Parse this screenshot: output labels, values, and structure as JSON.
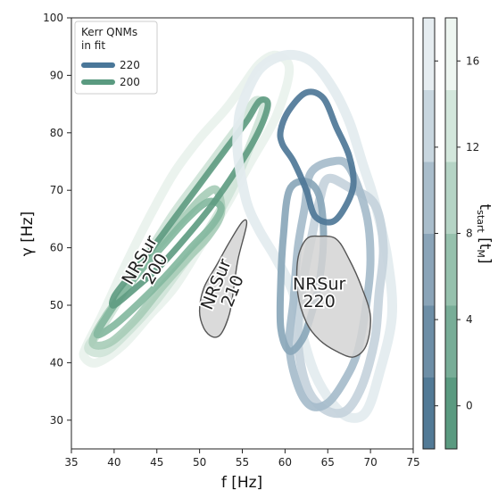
{
  "chart_data": {
    "type": "contour",
    "xlabel": "f [Hz]",
    "ylabel": "γ [Hz]",
    "xlim": [
      35,
      75
    ],
    "ylim": [
      25,
      100
    ],
    "x_ticks": [
      35,
      40,
      45,
      50,
      55,
      60,
      65,
      70,
      75
    ],
    "y_ticks": [
      30,
      40,
      50,
      60,
      70,
      80,
      90,
      100
    ],
    "grid": false,
    "legend": {
      "title": "Kerr QNMs in fit",
      "title_lines": [
        "Kerr QNMs",
        "in fit"
      ],
      "placement": "top-left",
      "entries": [
        {
          "label": "220",
          "color": "#4a7799"
        },
        {
          "label": "200",
          "color": "#5a9a80"
        }
      ]
    },
    "reference_regions": [
      {
        "name_lines": [
          "NRSur",
          "220"
        ],
        "label_at": [
          64,
          52
        ],
        "polygon": [
          [
            64,
            62
          ],
          [
            66,
            61.5
          ],
          [
            67.5,
            58
          ],
          [
            69,
            53
          ],
          [
            70,
            48
          ],
          [
            69.5,
            43
          ],
          [
            68,
            41
          ],
          [
            66,
            42
          ],
          [
            64,
            44
          ],
          [
            62.5,
            47
          ],
          [
            61.5,
            52
          ],
          [
            61.5,
            58
          ],
          [
            62.5,
            61.5
          ]
        ]
      },
      {
        "name_lines": [
          "NRSur",
          "210"
        ],
        "label_at": [
          53,
          53
        ],
        "rotation": -68,
        "polygon": [
          [
            55.5,
            64
          ],
          [
            54.5,
            58
          ],
          [
            54,
            53
          ],
          [
            53.5,
            48.5
          ],
          [
            52.5,
            45
          ],
          [
            51.5,
            44.5
          ],
          [
            50.5,
            46
          ],
          [
            50,
            49
          ],
          [
            50.5,
            53
          ],
          [
            52,
            57
          ],
          [
            53.5,
            61
          ],
          [
            55,
            64.5
          ]
        ]
      },
      {
        "name_lines": [
          "NRSur",
          "200"
        ],
        "label_at": [
          44,
          57
        ],
        "rotation": -60
      }
    ],
    "colorbars": [
      {
        "label": "t_start [t_M]",
        "ticks": [
          0,
          4,
          8,
          12,
          16
        ],
        "range": [
          -2,
          18
        ],
        "colors": [
          "#527a96",
          "#6d8ea6",
          "#8aa4b8",
          "#a9bdcb",
          "#c8d6df",
          "#e6edf1"
        ]
      },
      {
        "ticks": [
          0,
          4,
          8,
          12,
          16
        ],
        "range": [
          -2,
          18
        ],
        "colors": [
          "#5a9a80",
          "#78ad97",
          "#96c1ad",
          "#b5d4c5",
          "#d3e7dc",
          "#eef6f1"
        ]
      }
    ],
    "series": [
      {
        "mode": "200",
        "t_start": 16,
        "color": "#e9f2ed",
        "width": 10,
        "polygon": [
          [
            36.5,
            41
          ],
          [
            38,
            40
          ],
          [
            41,
            43
          ],
          [
            44,
            48
          ],
          [
            47,
            53
          ],
          [
            50,
            60
          ],
          [
            53,
            67
          ],
          [
            56,
            75
          ],
          [
            59,
            83
          ],
          [
            60.5,
            91
          ],
          [
            59,
            93.5
          ],
          [
            57,
            92
          ],
          [
            55,
            88
          ],
          [
            53,
            84
          ],
          [
            50,
            79
          ],
          [
            47,
            73
          ],
          [
            44,
            65
          ],
          [
            41,
            56
          ],
          [
            38.5,
            48
          ],
          [
            36.8,
            43
          ]
        ]
      },
      {
        "mode": "200",
        "t_start": 12,
        "color": "#cfe4d8",
        "width": 10,
        "polygon": [
          [
            37,
            42.5
          ],
          [
            39,
            42
          ],
          [
            42,
            46
          ],
          [
            45,
            51
          ],
          [
            48,
            57
          ],
          [
            51,
            63
          ],
          [
            54,
            71
          ],
          [
            56.5,
            80
          ],
          [
            57.5,
            84.5
          ],
          [
            56.5,
            85.5
          ],
          [
            55,
            82
          ],
          [
            53,
            78
          ],
          [
            50,
            72
          ],
          [
            47,
            66
          ],
          [
            44,
            59
          ],
          [
            41,
            52
          ],
          [
            38.5,
            46
          ]
        ]
      },
      {
        "mode": "200",
        "t_start": 8,
        "color": "#a8cdb9",
        "width": 9,
        "polygon": [
          [
            37.5,
            43.5
          ],
          [
            39.5,
            43.5
          ],
          [
            42.5,
            47.5
          ],
          [
            45.5,
            53
          ],
          [
            48.5,
            58
          ],
          [
            51,
            62
          ],
          [
            52.5,
            66
          ],
          [
            52,
            70
          ],
          [
            50.5,
            69
          ],
          [
            48,
            65
          ],
          [
            45,
            60
          ],
          [
            42,
            54
          ],
          [
            39,
            48
          ]
        ]
      },
      {
        "mode": "200",
        "t_start": 4,
        "color": "#84b9a0",
        "width": 8,
        "polygon": [
          [
            38,
            45
          ],
          [
            40,
            46.5
          ],
          [
            43,
            50.5
          ],
          [
            46,
            55
          ],
          [
            49,
            60
          ],
          [
            51.5,
            64
          ],
          [
            52.5,
            67
          ],
          [
            51,
            68
          ],
          [
            48.5,
            65
          ],
          [
            45.5,
            60
          ],
          [
            42.5,
            55
          ],
          [
            40,
            50
          ]
        ]
      },
      {
        "mode": "200",
        "t_start": 0,
        "color": "#5f9c82",
        "width": 7,
        "polygon": [
          [
            40,
            50
          ],
          [
            42.5,
            53
          ],
          [
            45.5,
            57
          ],
          [
            48.5,
            62
          ],
          [
            51.5,
            67.5
          ],
          [
            54.5,
            74
          ],
          [
            57,
            80.5
          ],
          [
            58,
            85
          ],
          [
            57,
            85.5
          ],
          [
            55.5,
            82
          ],
          [
            53,
            77
          ],
          [
            50,
            71
          ],
          [
            47,
            65
          ],
          [
            44,
            59
          ],
          [
            41.5,
            54.5
          ],
          [
            40,
            51.5
          ]
        ]
      },
      {
        "mode": "220",
        "t_start": 16,
        "color": "#e3ebef",
        "width": 11,
        "polygon": [
          [
            55,
            85
          ],
          [
            57,
            91
          ],
          [
            60,
            93.5
          ],
          [
            63,
            92.5
          ],
          [
            65.5,
            88
          ],
          [
            67.5,
            82
          ],
          [
            69,
            75
          ],
          [
            70.5,
            68
          ],
          [
            72,
            58
          ],
          [
            72.5,
            48
          ],
          [
            71,
            38
          ],
          [
            69.5,
            31.5
          ],
          [
            67.5,
            30.5
          ],
          [
            65.5,
            33
          ],
          [
            63.5,
            38
          ],
          [
            62,
            45
          ],
          [
            61,
            52
          ],
          [
            59,
            58
          ],
          [
            57,
            63
          ],
          [
            55.5,
            68
          ],
          [
            54.5,
            76
          ],
          [
            54.5,
            81
          ]
        ]
      },
      {
        "mode": "220",
        "t_start": 12,
        "color": "#c5d3dc",
        "width": 10,
        "polygon": [
          [
            65,
            72
          ],
          [
            67.5,
            70.5
          ],
          [
            70.5,
            67.5
          ],
          [
            71.5,
            60
          ],
          [
            71,
            52
          ],
          [
            70.5,
            44
          ],
          [
            69,
            36
          ],
          [
            67,
            31.5
          ],
          [
            64.5,
            32
          ],
          [
            62.5,
            36
          ],
          [
            61.5,
            44
          ],
          [
            62,
            53
          ],
          [
            63,
            61
          ],
          [
            64,
            68
          ]
        ]
      },
      {
        "mode": "220",
        "t_start": 8,
        "color": "#a6bccb",
        "width": 9,
        "polygon": [
          [
            63,
            73
          ],
          [
            65.5,
            75
          ],
          [
            67.5,
            74
          ],
          [
            69.5,
            66
          ],
          [
            70,
            58
          ],
          [
            69.5,
            50
          ],
          [
            68.5,
            42
          ],
          [
            67,
            37
          ],
          [
            65,
            33
          ],
          [
            63,
            32.5
          ],
          [
            61.5,
            36
          ],
          [
            60.5,
            43
          ],
          [
            61,
            51
          ],
          [
            61.5,
            60
          ],
          [
            62.3,
            67
          ]
        ]
      },
      {
        "mode": "220",
        "t_start": 4,
        "color": "#8aa7ba",
        "width": 8,
        "polygon": [
          [
            60.5,
            70
          ],
          [
            62.5,
            71.5
          ],
          [
            64,
            69
          ],
          [
            64.5,
            62
          ],
          [
            64,
            54
          ],
          [
            63,
            48
          ],
          [
            62,
            44
          ],
          [
            60.5,
            42
          ],
          [
            59.5,
            46
          ],
          [
            59.5,
            54
          ],
          [
            59.8,
            62
          ]
        ]
      },
      {
        "mode": "220",
        "t_start": 0,
        "color": "#4e7797",
        "width": 7,
        "polygon": [
          [
            59.5,
            80.5
          ],
          [
            60.5,
            84
          ],
          [
            62.5,
            87
          ],
          [
            64.5,
            86
          ],
          [
            66,
            81
          ],
          [
            67.5,
            76
          ],
          [
            68,
            71
          ],
          [
            67,
            67
          ],
          [
            65.5,
            64.5
          ],
          [
            63.5,
            65.5
          ],
          [
            62.5,
            70
          ],
          [
            61,
            75
          ],
          [
            59.7,
            78
          ]
        ]
      }
    ]
  }
}
